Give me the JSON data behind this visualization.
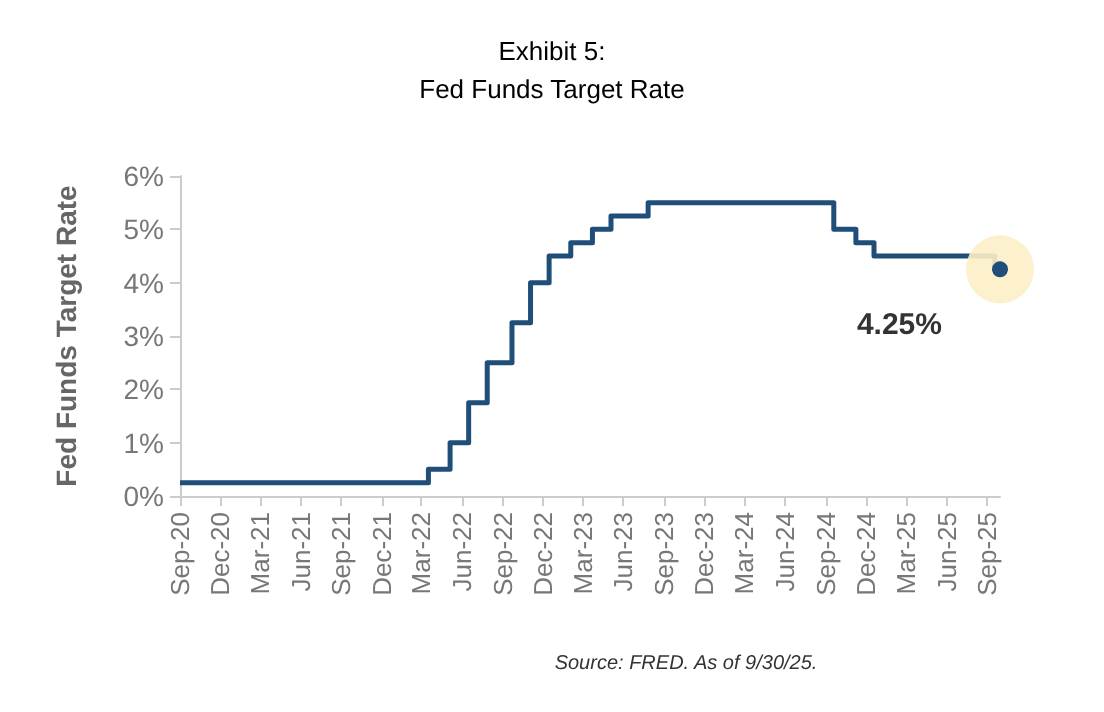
{
  "chart_data": {
    "type": "step",
    "title": "Exhibit 5:",
    "subtitle": "Fed Funds Target Rate",
    "ylabel": "Fed Funds Target Rate",
    "x": [
      "2020-09-01",
      "2022-03-17",
      "2022-05-05",
      "2022-06-16",
      "2022-07-28",
      "2022-09-22",
      "2022-11-03",
      "2022-12-15",
      "2023-02-02",
      "2023-03-23",
      "2023-05-04",
      "2023-07-27",
      "2024-09-19",
      "2024-11-08",
      "2024-12-19",
      "2025-09-18",
      "2025-09-30"
    ],
    "series": [
      {
        "color": "#1f4e79",
        "values": [
          0.25,
          0.5,
          1.0,
          1.75,
          2.5,
          3.25,
          4.0,
          4.5,
          4.75,
          5.0,
          5.25,
          5.5,
          5.0,
          4.75,
          4.5,
          4.25,
          4.25
        ]
      }
    ],
    "xlim": [
      "2020-09-01",
      "2025-09-30"
    ],
    "xticks": [
      {
        "value": "2020-09-01",
        "label": "Sep-20"
      },
      {
        "value": "2020-12-01",
        "label": "Dec-20"
      },
      {
        "value": "2021-03-01",
        "label": "Mar-21"
      },
      {
        "value": "2021-06-01",
        "label": "Jun-21"
      },
      {
        "value": "2021-09-01",
        "label": "Sep-21"
      },
      {
        "value": "2021-12-01",
        "label": "Dec-21"
      },
      {
        "value": "2022-03-01",
        "label": "Mar-22"
      },
      {
        "value": "2022-06-01",
        "label": "Jun-22"
      },
      {
        "value": "2022-09-01",
        "label": "Sep-22"
      },
      {
        "value": "2022-12-01",
        "label": "Dec-22"
      },
      {
        "value": "2023-03-01",
        "label": "Mar-23"
      },
      {
        "value": "2023-06-01",
        "label": "Jun-23"
      },
      {
        "value": "2023-09-01",
        "label": "Sep-23"
      },
      {
        "value": "2023-12-01",
        "label": "Dec-23"
      },
      {
        "value": "2024-03-01",
        "label": "Mar-24"
      },
      {
        "value": "2024-06-01",
        "label": "Jun-24"
      },
      {
        "value": "2024-09-01",
        "label": "Sep-24"
      },
      {
        "value": "2024-12-01",
        "label": "Dec-24"
      },
      {
        "value": "2025-03-01",
        "label": "Mar-25"
      },
      {
        "value": "2025-06-01",
        "label": "Jun-25"
      },
      {
        "value": "2025-09-01",
        "label": "Sep-25"
      }
    ],
    "ylim": [
      0,
      6
    ],
    "yticks": [
      {
        "value": 0,
        "label": "0%"
      },
      {
        "value": 1,
        "label": "1%"
      },
      {
        "value": 2,
        "label": "2%"
      },
      {
        "value": 3,
        "label": "3%"
      },
      {
        "value": 4,
        "label": "4%"
      },
      {
        "value": 5,
        "label": "5%"
      },
      {
        "value": 6,
        "label": "6%"
      }
    ],
    "grid": false,
    "annotations": [
      {
        "text": "4.25%",
        "x": "2025-09-30",
        "y": 4.25
      },
      "Source: FRED. As of 9/30/25."
    ]
  }
}
